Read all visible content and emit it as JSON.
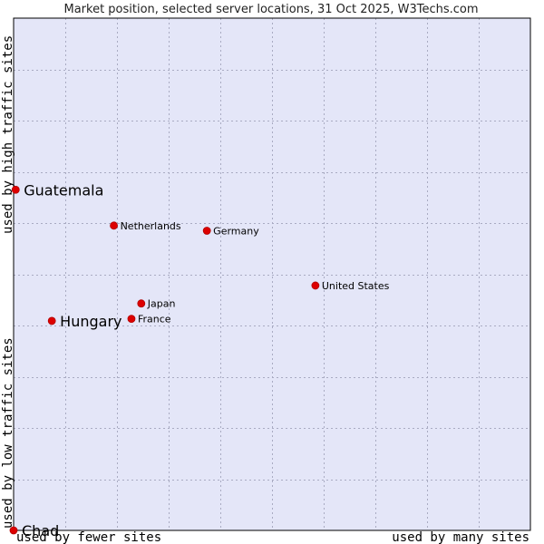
{
  "chart_data": {
    "type": "scatter",
    "title": "Market position, selected server locations, 31 Oct 2025, W3Techs.com",
    "xlabel_left": "used by fewer sites",
    "xlabel_right": "used by many sites",
    "ylabel_low": "used by low traffic sites",
    "ylabel_high": "used by high traffic sites",
    "xlim": [
      0,
      10
    ],
    "ylim": [
      0,
      10
    ],
    "grid": true,
    "colors": {
      "plot_bg": "#e4e6f8",
      "grid": "#a9abc2",
      "point": "#dd0000",
      "frame": "#000000"
    },
    "points": [
      {
        "label": "Guatemala",
        "x": 0.04,
        "y": 6.65,
        "size": "large"
      },
      {
        "label": "Netherlands",
        "x": 1.94,
        "y": 5.95,
        "size": "small"
      },
      {
        "label": "Germany",
        "x": 3.74,
        "y": 5.85,
        "size": "small"
      },
      {
        "label": "United States",
        "x": 5.84,
        "y": 4.78,
        "size": "small"
      },
      {
        "label": "Japan",
        "x": 2.47,
        "y": 4.43,
        "size": "small"
      },
      {
        "label": "France",
        "x": 2.28,
        "y": 4.13,
        "size": "small"
      },
      {
        "label": "Hungary",
        "x": 0.74,
        "y": 4.09,
        "size": "large"
      },
      {
        "label": "Chad",
        "x": 0.0,
        "y": 0.0,
        "size": "large"
      }
    ]
  }
}
